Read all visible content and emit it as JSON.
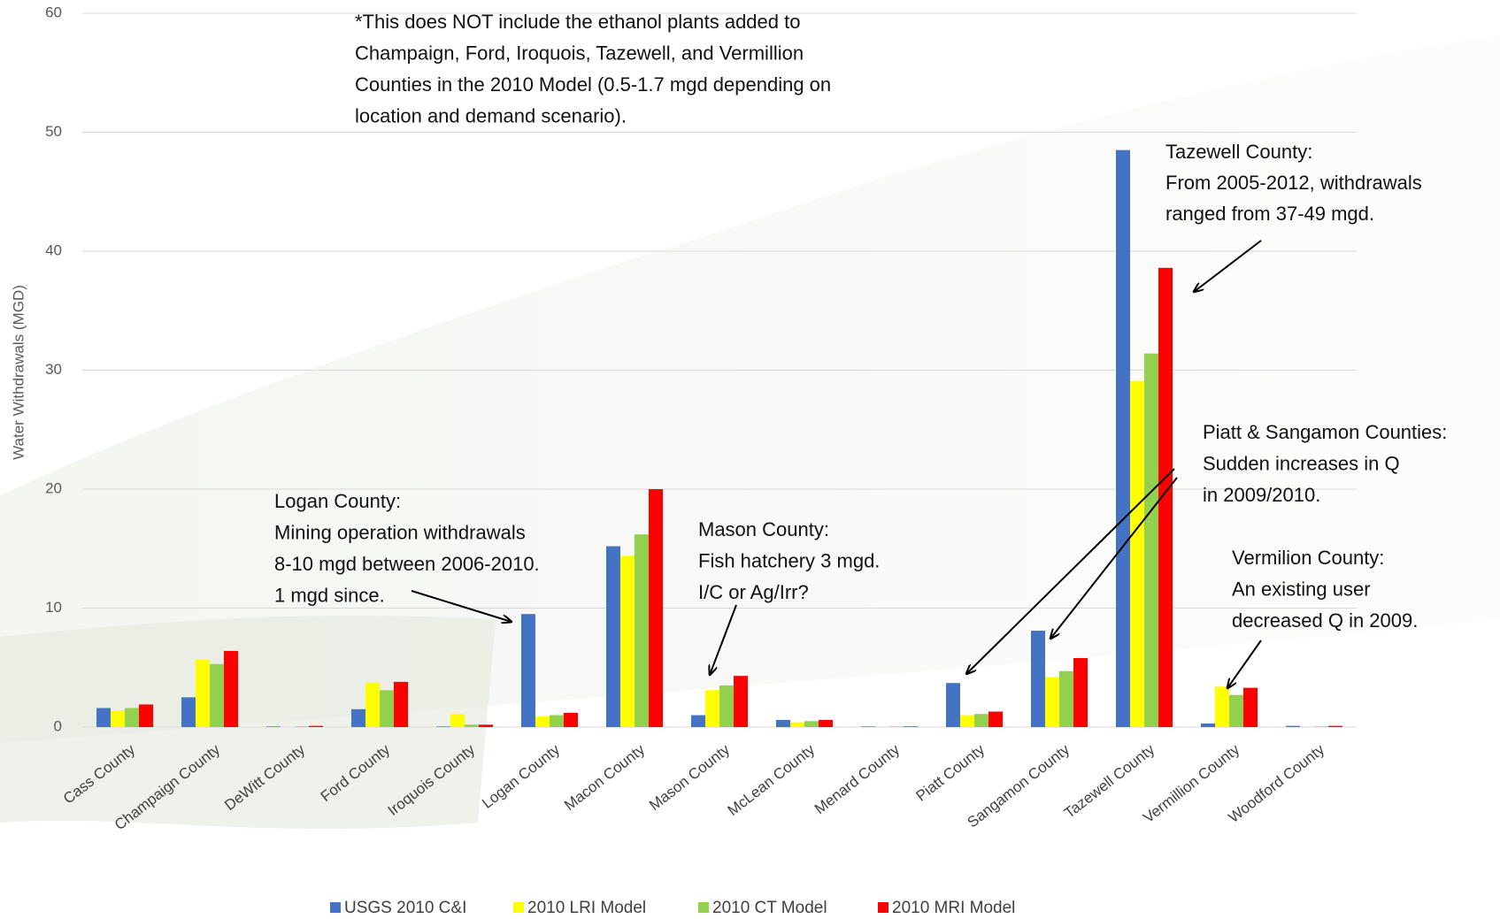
{
  "chart_data": {
    "type": "bar",
    "y_label": "Water Withdrawals (MGD)",
    "categories": [
      "Cass County",
      "Champaign County",
      "DeWitt County",
      "Ford County",
      "Iroquois County",
      "Logan County",
      "Macon County",
      "Mason County",
      "McLean County",
      "Menard County",
      "Piatt County",
      "Sangamon County",
      "Tazewell County",
      "Vermillion County",
      "Woodford County"
    ],
    "series": [
      {
        "name": "USGS 2010 C&I",
        "color": "#4472c4",
        "values": [
          1.6,
          2.5,
          0.05,
          1.5,
          0.05,
          9.5,
          15.2,
          1.0,
          0.6,
          0.05,
          3.7,
          8.1,
          48.5,
          0.3,
          0.1
        ]
      },
      {
        "name": "2010 LRI Model",
        "color": "#ffff00",
        "values": [
          1.4,
          5.7,
          0.05,
          3.7,
          1.1,
          0.9,
          14.4,
          3.1,
          0.4,
          0.05,
          1.0,
          4.2,
          29.1,
          3.4,
          0.05
        ]
      },
      {
        "name": "2010 CT Model",
        "color": "#92d050",
        "values": [
          1.6,
          5.3,
          0.05,
          3.1,
          0.2,
          1.0,
          16.2,
          3.5,
          0.5,
          0.05,
          1.1,
          4.7,
          31.4,
          2.7,
          0.05
        ]
      },
      {
        "name": "2010 MRI Model",
        "color": "#ff0000",
        "values": [
          1.9,
          6.4,
          0.1,
          3.8,
          0.2,
          1.2,
          20.0,
          4.3,
          0.6,
          0.05,
          1.3,
          5.8,
          38.6,
          3.3,
          0.1
        ]
      }
    ],
    "ylim": [
      0,
      60
    ],
    "yticks": [
      0,
      10,
      20,
      30,
      40,
      50,
      60
    ],
    "grid": true,
    "annotations": [
      {
        "lines": [
          "*This does NOT include the ethanol plants added to",
          "Champaign, Ford, Iroquois, Tazewell, and Vermillion",
          "Counties in the 2010 Model (0.5-1.7 mgd depending on",
          "location and demand scenario)."
        ]
      },
      {
        "lines": [
          "Logan County:",
          "Mining operation withdrawals",
          "8-10 mgd between 2006-2010.",
          "1 mgd since."
        ]
      },
      {
        "lines": [
          "Mason County:",
          "Fish hatchery 3 mgd.",
          "I/C or Ag/Irr?"
        ]
      },
      {
        "lines": [
          "Tazewell County:",
          "From 2005-2012, withdrawals",
          "ranged from 37-49 mgd."
        ]
      },
      {
        "lines": [
          "Piatt & Sangamon Counties:",
          "Sudden increases in Q",
          "in 2009/2010."
        ]
      },
      {
        "lines": [
          "Vermilion County:",
          "An existing user",
          "decreased Q in 2009."
        ]
      }
    ]
  }
}
